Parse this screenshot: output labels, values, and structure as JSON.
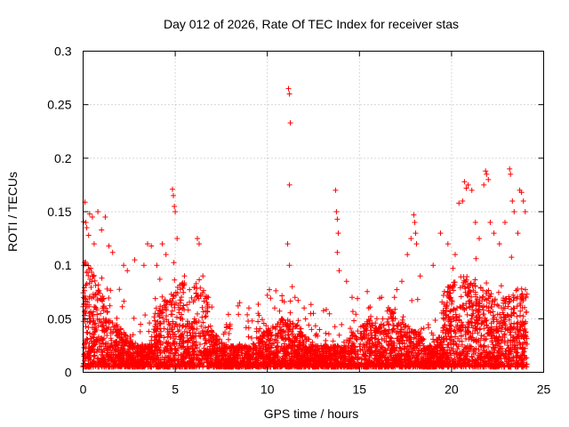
{
  "chart_data": {
    "type": "scatter",
    "title": "Day 012 of 2026, Rate Of TEC Index for receiver stas",
    "xlabel": "GPS time / hours",
    "ylabel": "ROTI / TECUs",
    "xlim": [
      0,
      25
    ],
    "ylim": [
      0,
      0.3
    ],
    "x_ticks": [
      0,
      5,
      10,
      15,
      20,
      25
    ],
    "x_tick_labels": [
      "0",
      "5",
      "10",
      "15",
      "20",
      "25"
    ],
    "y_ticks": [
      0,
      0.05,
      0.1,
      0.15,
      0.2,
      0.25,
      0.3
    ],
    "y_tick_labels": [
      "0",
      "0.05",
      "0.1",
      "0.15",
      "0.2",
      "0.25",
      "0.3"
    ],
    "grid": true,
    "marker": "+",
    "color": "#ff0000",
    "series": [
      {
        "name": "",
        "points": [
          [
            0.1,
            0.159
          ],
          [
            0.15,
            0.14
          ],
          [
            0.2,
            0.135
          ],
          [
            0.3,
            0.128
          ],
          [
            0.35,
            0.148
          ],
          [
            0.5,
            0.145
          ],
          [
            0.6,
            0.12
          ],
          [
            0.8,
            0.15
          ],
          [
            1.0,
            0.133
          ],
          [
            1.2,
            0.145
          ],
          [
            1.4,
            0.118
          ],
          [
            1.6,
            0.112
          ],
          [
            2.2,
            0.1
          ],
          [
            2.4,
            0.095
          ],
          [
            2.8,
            0.105
          ],
          [
            3.3,
            0.1
          ],
          [
            3.5,
            0.12
          ],
          [
            3.7,
            0.118
          ],
          [
            4.0,
            0.1
          ],
          [
            4.3,
            0.12
          ],
          [
            4.5,
            0.11
          ],
          [
            4.85,
            0.171
          ],
          [
            4.9,
            0.165
          ],
          [
            4.95,
            0.155
          ],
          [
            5.0,
            0.15
          ],
          [
            5.1,
            0.125
          ],
          [
            5.5,
            0.09
          ],
          [
            6.2,
            0.125
          ],
          [
            6.3,
            0.12
          ],
          [
            6.5,
            0.09
          ],
          [
            6.8,
            0.07
          ],
          [
            8.5,
            0.065
          ],
          [
            9.0,
            0.06
          ],
          [
            9.5,
            0.055
          ],
          [
            10.0,
            0.072
          ],
          [
            10.4,
            0.06
          ],
          [
            10.8,
            0.05
          ],
          [
            11.15,
            0.265
          ],
          [
            11.2,
            0.26
          ],
          [
            11.25,
            0.233
          ],
          [
            11.2,
            0.175
          ],
          [
            11.1,
            0.12
          ],
          [
            11.2,
            0.1
          ],
          [
            11.35,
            0.08
          ],
          [
            11.5,
            0.07
          ],
          [
            12.0,
            0.06
          ],
          [
            12.5,
            0.055
          ],
          [
            13.7,
            0.17
          ],
          [
            13.75,
            0.15
          ],
          [
            13.8,
            0.143
          ],
          [
            13.85,
            0.13
          ],
          [
            13.8,
            0.112
          ],
          [
            13.9,
            0.095
          ],
          [
            14.3,
            0.085
          ],
          [
            14.6,
            0.07
          ],
          [
            15.5,
            0.06
          ],
          [
            16.2,
            0.07
          ],
          [
            16.9,
            0.07
          ],
          [
            17.3,
            0.085
          ],
          [
            17.6,
            0.11
          ],
          [
            17.8,
            0.125
          ],
          [
            17.95,
            0.147
          ],
          [
            18.0,
            0.14
          ],
          [
            18.05,
            0.13
          ],
          [
            18.1,
            0.12
          ],
          [
            18.3,
            0.09
          ],
          [
            19.0,
            0.1
          ],
          [
            19.4,
            0.13
          ],
          [
            19.8,
            0.12
          ],
          [
            20.2,
            0.11
          ],
          [
            20.4,
            0.158
          ],
          [
            20.6,
            0.16
          ],
          [
            20.7,
            0.178
          ],
          [
            20.8,
            0.172
          ],
          [
            20.9,
            0.175
          ],
          [
            21.1,
            0.17
          ],
          [
            21.3,
            0.14
          ],
          [
            21.5,
            0.125
          ],
          [
            21.75,
            0.175
          ],
          [
            21.85,
            0.188
          ],
          [
            21.9,
            0.185
          ],
          [
            22.0,
            0.18
          ],
          [
            22.1,
            0.14
          ],
          [
            22.3,
            0.13
          ],
          [
            22.6,
            0.12
          ],
          [
            22.9,
            0.14
          ],
          [
            23.15,
            0.19
          ],
          [
            23.2,
            0.185
          ],
          [
            23.3,
            0.16
          ],
          [
            23.4,
            0.15
          ],
          [
            23.6,
            0.13
          ],
          [
            23.7,
            0.17
          ],
          [
            23.8,
            0.168
          ],
          [
            23.9,
            0.16
          ],
          [
            24.0,
            0.15
          ]
        ]
      }
    ]
  }
}
